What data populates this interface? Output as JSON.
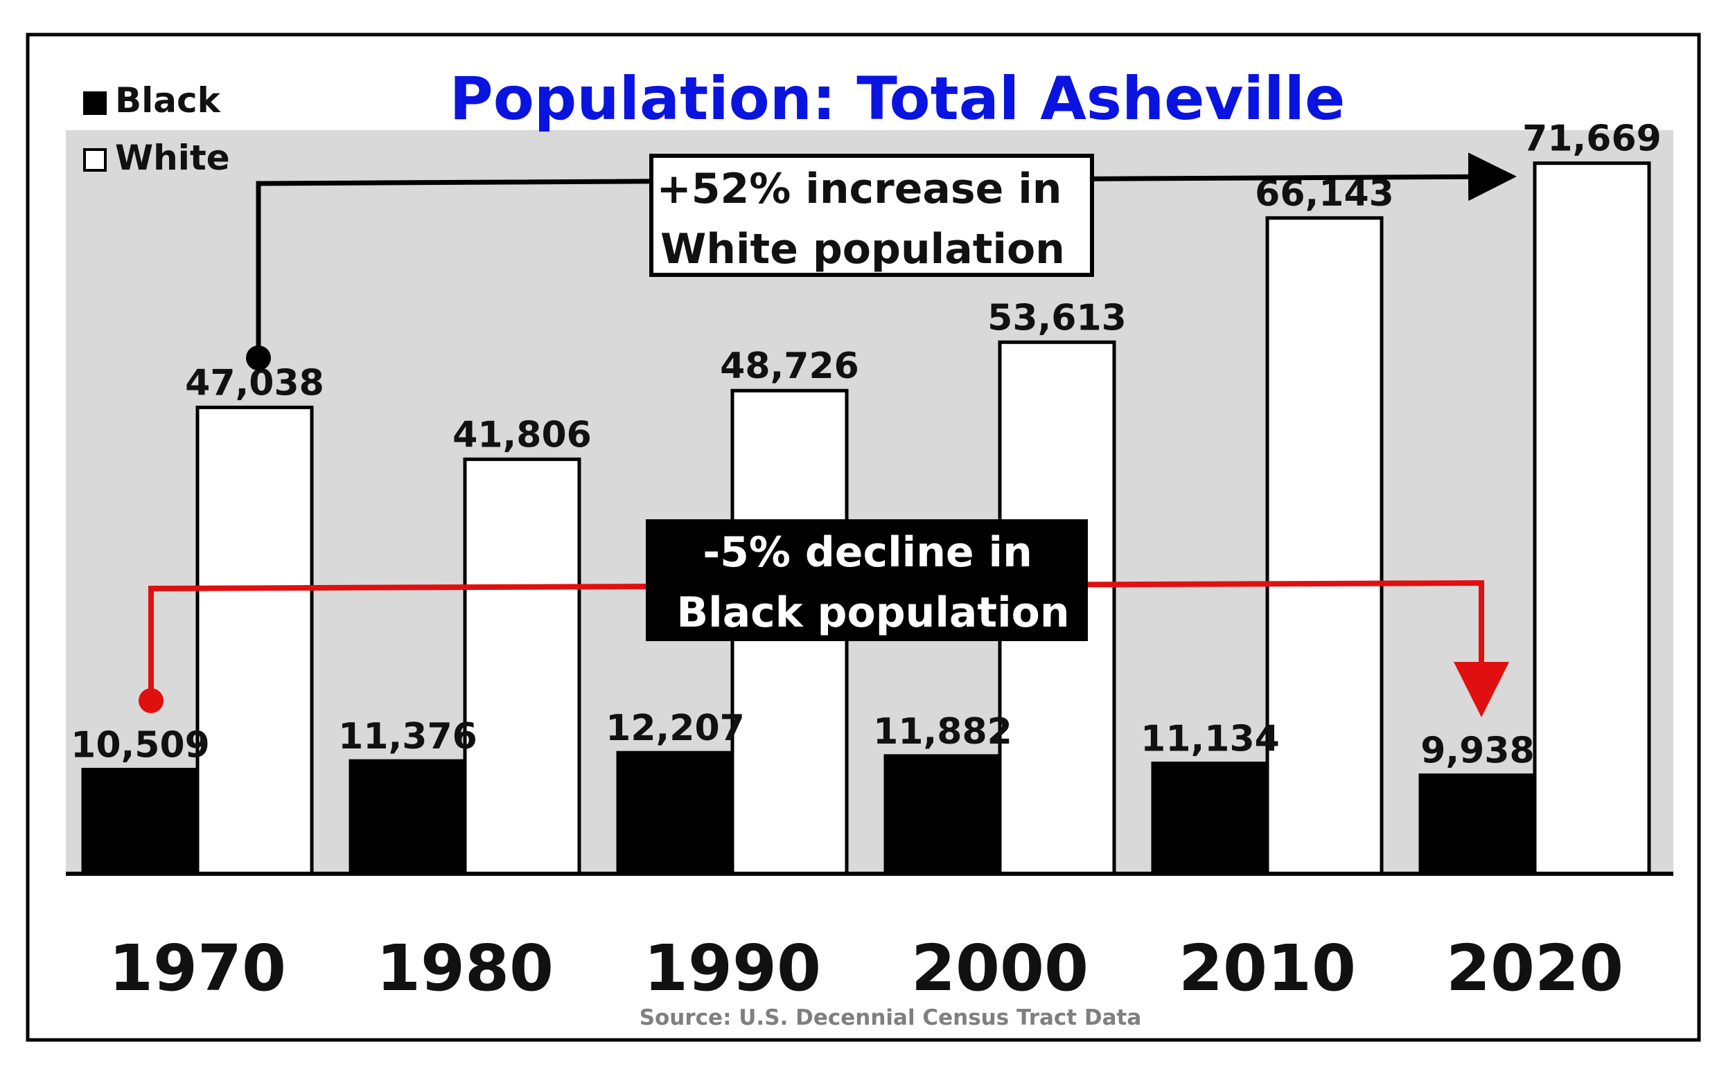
{
  "chart_data": {
    "type": "bar",
    "title": "Population: Total Asheville",
    "categories": [
      "1970",
      "1980",
      "1990",
      "2000",
      "2010",
      "2020"
    ],
    "series": [
      {
        "name": "Black",
        "color": "#000000",
        "values": [
          10509,
          11376,
          12207,
          11882,
          11134,
          9938
        ],
        "labels": [
          "10,509",
          "11,376",
          "12,207",
          "11,882",
          "11,134",
          "9,938"
        ]
      },
      {
        "name": "White",
        "color": "#ffffff",
        "values": [
          47038,
          41806,
          48726,
          53613,
          66143,
          71669
        ],
        "labels": [
          "47,038",
          "41,806",
          "48,726",
          "53,613",
          "66,143",
          "71,669"
        ]
      }
    ],
    "ylim": [
      0,
      75000
    ],
    "legend_position": "top-left",
    "annotations": {
      "white_increase": {
        "line1": "+52% increase in",
        "line2": "White population"
      },
      "black_decline": {
        "line1": "-5% decline in",
        "line2": "Black population"
      }
    },
    "source": "Source: U.S. Decennial Census Tract Data",
    "plot_background": "#d9d9d9",
    "title_color": "#0a14e0",
    "decline_color": "#e01010"
  }
}
